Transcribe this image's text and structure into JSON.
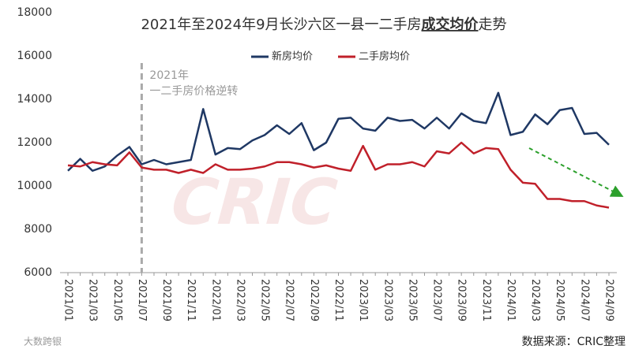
{
  "chart_data": {
    "type": "line",
    "title": [
      "2021年至2024年9月长沙六区一县一二手房",
      "成交均价",
      "走势"
    ],
    "categories": [
      "2021/01",
      null,
      "2021/03",
      null,
      "2021/05",
      null,
      "2021/07",
      null,
      "2021/09",
      null,
      "2021/11",
      null,
      "2022/01",
      null,
      "2022/03",
      null,
      "2022/05",
      null,
      "2022/07",
      null,
      "2022/09",
      null,
      "2022/11",
      null,
      "2023/01",
      null,
      "2023/03",
      null,
      "2023/05",
      null,
      "2023/07",
      null,
      "2023/09",
      null,
      "2023/11",
      null,
      "2024/01",
      null,
      "2024/03",
      null,
      "2024/05",
      null,
      "2024/07",
      null,
      "2024/09"
    ],
    "series": [
      {
        "name": "新房均价",
        "color": "#1f3864",
        "values": [
          10700,
          11250,
          10700,
          10900,
          11400,
          11800,
          11000,
          11200,
          11000,
          11100,
          11200,
          13550,
          11450,
          11750,
          11700,
          12100,
          12350,
          12800,
          12400,
          12900,
          11650,
          12000,
          13100,
          13150,
          12650,
          12550,
          13150,
          13000,
          13050,
          12650,
          13150,
          12650,
          13350,
          13000,
          12900,
          14300,
          12350,
          12500,
          13300,
          12850,
          13500,
          13600,
          12400,
          12450,
          11900
        ]
      },
      {
        "name": "二手房均价",
        "color": "#c0202a",
        "values": [
          10950,
          10900,
          11100,
          11000,
          10950,
          11550,
          10850,
          10750,
          10750,
          10600,
          10750,
          10600,
          11000,
          10750,
          10750,
          10800,
          10900,
          11100,
          11100,
          11000,
          10850,
          10950,
          10800,
          10700,
          11850,
          10750,
          11000,
          11000,
          11100,
          10900,
          11600,
          11500,
          12000,
          11500,
          11750,
          11700,
          10750,
          10150,
          10100,
          9400,
          9400,
          9300,
          9300,
          9100,
          9000
        ]
      }
    ],
    "ylim": [
      6000,
      18000
    ],
    "yticks": [
      6000,
      8000,
      10000,
      12000,
      14000,
      16000,
      18000
    ],
    "grid": false,
    "legend": "top",
    "annotation": {
      "x": "2021/07",
      "lines": [
        "2021年",
        "一二手房价格逆转"
      ]
    },
    "watermark": "CRIC",
    "logo": "大数跨银",
    "source": "数据来源：CRIC整理"
  }
}
